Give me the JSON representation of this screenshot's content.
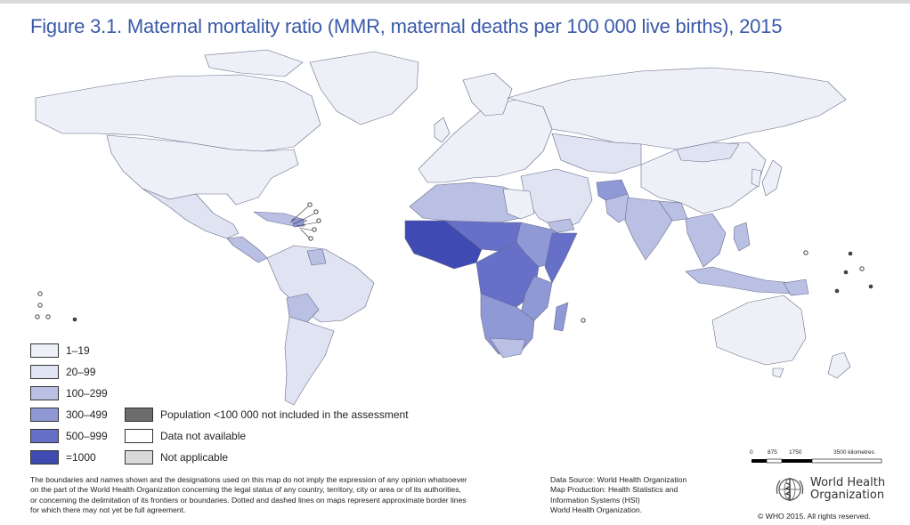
{
  "title": "Figure 3.1. Maternal mortality ratio (MMR, maternal deaths per 100 000 live births), 2015",
  "colors": {
    "c1": "#eef0f8",
    "c2": "#dfe3f2",
    "c3": "#b9c0e3",
    "c4": "#8f99d6",
    "c5": "#6670c8",
    "c6": "#3f4bb3",
    "pop_small": "#6d6d6d",
    "no_data": "#ffffff",
    "not_applicable": "#dadada",
    "title": "#3b5aa8"
  },
  "legend": {
    "categories": [
      {
        "label": "1–19",
        "color": "#eef0f8"
      },
      {
        "label": "20–99",
        "color": "#dfe3f2"
      },
      {
        "label": "100–299",
        "color": "#b9c0e3"
      },
      {
        "label": "300–499",
        "color": "#8f99d6"
      },
      {
        "label": "500–999",
        "color": "#6670c8"
      },
      {
        "label": "=1000",
        "color": "#3f4bb3"
      }
    ],
    "special": [
      {
        "label": "Population <100 000 not included in the assessment",
        "color": "#6d6d6d"
      },
      {
        "label": "Data not available",
        "color": "#ffffff"
      },
      {
        "label": "Not applicable",
        "color": "#dadada"
      }
    ]
  },
  "scale": {
    "ticks": [
      "0",
      "875",
      "1750",
      "3500 kilometres"
    ]
  },
  "disclaimer": [
    "The boundaries and names shown and the designations used on this map do not imply the expression of any opinion whatsoever",
    "on the part of the World Health Organization concerning the legal status of any country, territory, city or area or of its authorities,",
    "or concerning the delimitation of its frontiers or boundaries. Dotted and dashed lines on maps represent approximate border lines",
    "for which there may not yet be full agreement."
  ],
  "source": [
    "Data Source: World Health Organization",
    "Map Production: Health Statistics and",
    "Information Systems (HSI)",
    "World Health Organization."
  ],
  "logo": {
    "line1": "World Health",
    "line2": "Organization"
  },
  "copyright": "© WHO 2015. All rights reserved."
}
